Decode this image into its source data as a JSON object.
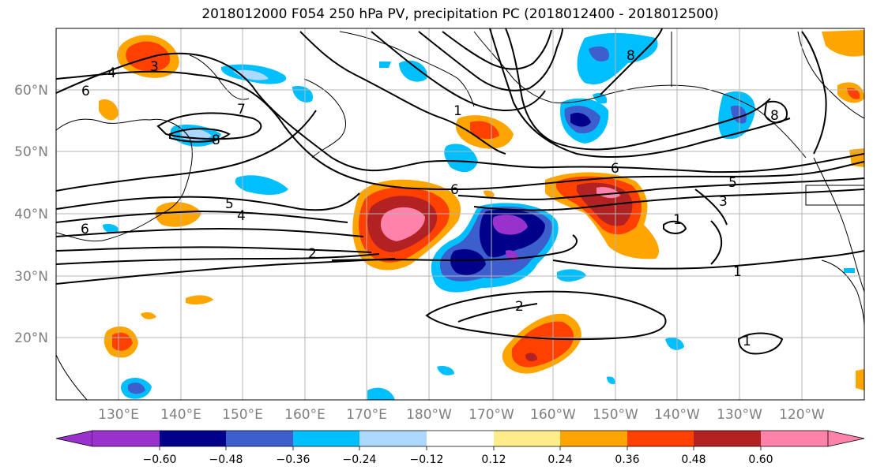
{
  "title": "2018012000 F054 250 hPa PV, precipitation PC (2018012400 - 2018012500)",
  "lat_labels": [
    "60°N",
    "50°N",
    "40°N",
    "30°N",
    "20°N"
  ],
  "lon_labels": [
    "130°E",
    "140°E",
    "150°E",
    "160°E",
    "170°E",
    "180°W",
    "170°W",
    "160°W",
    "150°W",
    "140°W",
    "130°W",
    "120°W"
  ],
  "pv_contour_labels": [
    "3",
    "4",
    "6",
    "7",
    "8",
    "1",
    "8",
    "8",
    "6",
    "5",
    "3",
    "6",
    "5",
    "4",
    "6",
    "2",
    "1",
    "1",
    "2",
    "1"
  ],
  "colorbar": {
    "ticks": [
      "−0.60",
      "−0.48",
      "−0.36",
      "−0.24",
      "−0.12",
      "0.12",
      "0.24",
      "0.36",
      "0.48",
      "0.60"
    ],
    "colors": [
      "#9932cc",
      "#00008b",
      "#3c5fcd",
      "#00bfff",
      "#add8ff",
      "#ffffff",
      "#ffec8b",
      "#ffa500",
      "#ff4000",
      "#b22222",
      "#ff82ab"
    ]
  }
}
